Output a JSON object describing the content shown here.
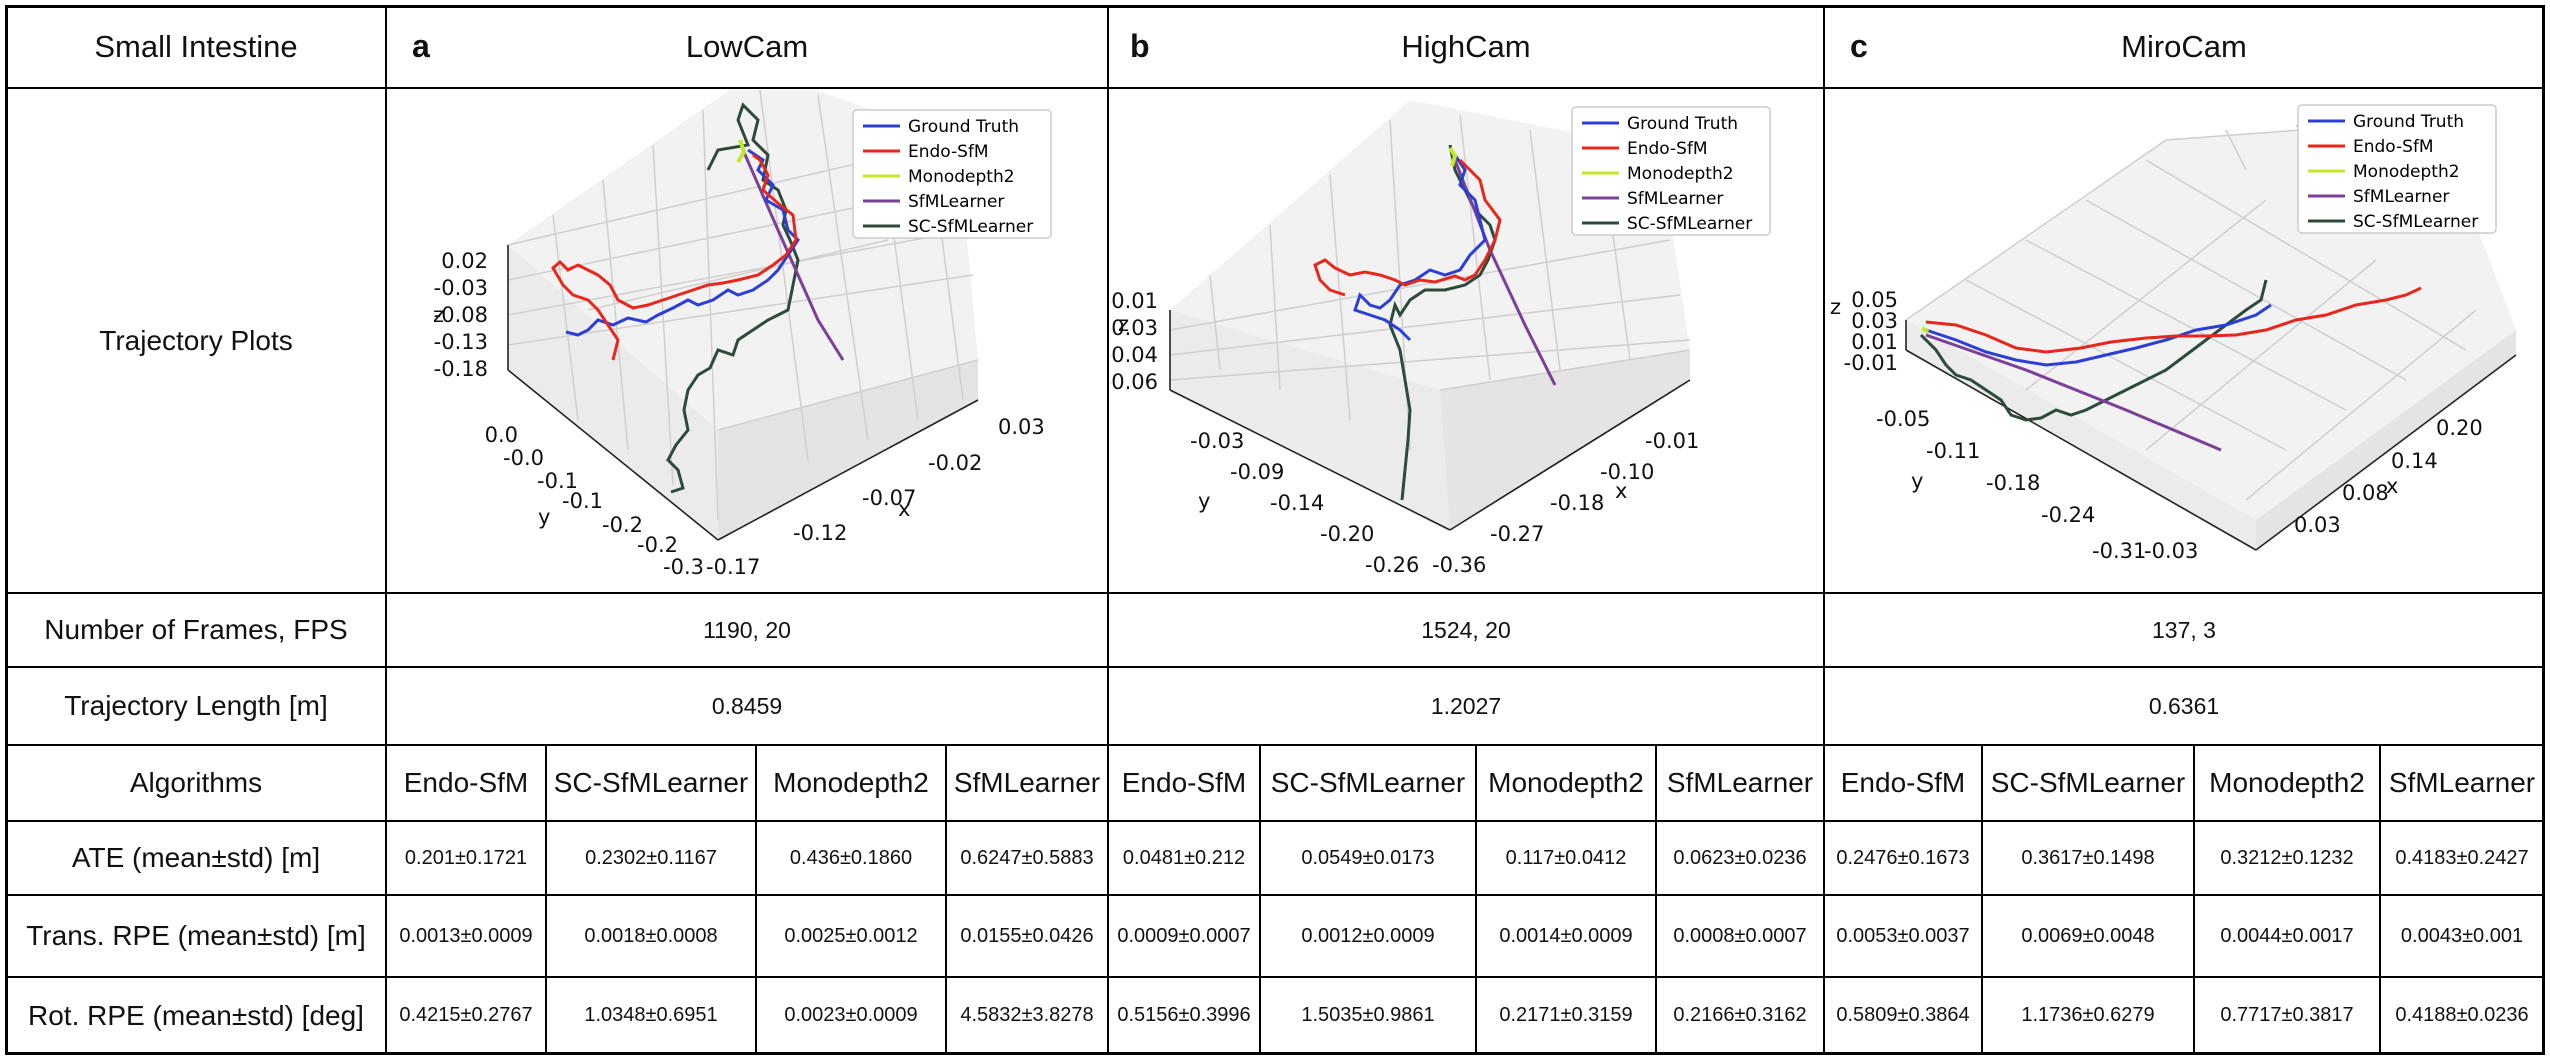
{
  "corner_title": "Small Intestine",
  "datasets": [
    {
      "letter": "a",
      "name": "LowCam",
      "frames_fps": "1190, 20",
      "traj_length": "0.8459"
    },
    {
      "letter": "b",
      "name": "HighCam",
      "frames_fps": "1524, 20",
      "traj_length": "1.2027"
    },
    {
      "letter": "c",
      "name": "MiroCam",
      "frames_fps": "137, 3",
      "traj_length": "0.6361"
    }
  ],
  "row_labels": {
    "trajectory_plots": "Trajectory Plots",
    "frames_fps": "Number of Frames, FPS",
    "traj_length": "Trajectory Length [m]",
    "algorithms": "Algorithms",
    "ate": "ATE (mean±std) [m]",
    "trans_rpe": "Trans. RPE (mean±std) [m]",
    "rot_rpe": "Rot. RPE (mean±std) [deg]"
  },
  "algorithms": [
    "Endo-SfM",
    "SC-SfMLearner",
    "Monodepth2",
    "SfMLearner",
    "Endo-SfM",
    "SC-SfMLearner",
    "Monodepth2",
    "SfMLearner",
    "Endo-SfM",
    "SC-SfMLearner",
    "Monodepth2",
    "SfMLearner"
  ],
  "ate": [
    "0.201±0.1721",
    "0.2302±0.1167",
    "0.436±0.1860",
    "0.6247±0.5883",
    "0.0481±0.212",
    "0.0549±0.0173",
    "0.117±0.0412",
    "0.0623±0.0236",
    "0.2476±0.1673",
    "0.3617±0.1498",
    "0.3212±0.1232",
    "0.4183±0.2427"
  ],
  "trans_rpe": [
    "0.0013±0.0009",
    "0.0018±0.0008",
    "0.0025±0.0012",
    "0.0155±0.0426",
    "0.0009±0.0007",
    "0.0012±0.0009",
    "0.0014±0.0009",
    "0.0008±0.0007",
    "0.0053±0.0037",
    "0.0069±0.0048",
    "0.0044±0.0017",
    "0.0043±0.001"
  ],
  "rot_rpe": [
    "0.4215±0.2767",
    "1.0348±0.6951",
    "0.0023±0.0009",
    "4.5832±3.8278",
    "0.5156±0.3996",
    "1.5035±0.9861",
    "0.2171±0.3159",
    "0.2166±0.3162",
    "0.5809±0.3864",
    "1.1736±0.6279",
    "0.7717±0.3817",
    "0.4188±0.0236"
  ],
  "legend": [
    "Ground Truth",
    "Endo-SfM",
    "Monodepth2",
    "SfMLearner",
    "SC-SfMLearner"
  ],
  "series_colors": {
    "Ground Truth": "#2b3fd6",
    "Endo-SfM": "#e8261c",
    "Monodepth2": "#c8e62a",
    "SfMLearner": "#7b3f98",
    "SC-SfMLearner": "#2d4a3c"
  },
  "plots": [
    {
      "z_axis_label": "z",
      "y_axis_label": "y",
      "x_axis_label": "x",
      "z_ticks": [
        "0.02",
        "-0.03",
        "-0.08",
        "-0.13",
        "-0.18"
      ],
      "y_ticks": [
        "0.0",
        "-0.0",
        "-0.1",
        "-0.1",
        "-0.2",
        "-0.2",
        "-0.3"
      ],
      "x_ticks": [
        "0.03",
        "-0.02",
        "-0.07",
        "-0.12",
        "-0.17"
      ]
    },
    {
      "z_axis_label": "z",
      "y_axis_label": "y",
      "x_axis_label": "x",
      "z_ticks": [
        "-0.01",
        "-0.03",
        "-0.04",
        "-0.06"
      ],
      "y_ticks": [
        "-0.03",
        "-0.09",
        "-0.14",
        "-0.20",
        "-0.26"
      ],
      "x_ticks": [
        "-0.01",
        "-0.10",
        "-0.18",
        "-0.27",
        "-0.36"
      ]
    },
    {
      "z_axis_label": "z",
      "y_axis_label": "y",
      "x_axis_label": "x",
      "z_ticks": [
        "0.05",
        "0.03",
        "0.01",
        "-0.01"
      ],
      "y_ticks": [
        "-0.05",
        "-0.11",
        "-0.18",
        "-0.24",
        "-0.31"
      ],
      "x_ticks": [
        "0.20",
        "0.14",
        "0.08",
        "0.03",
        "-0.03"
      ]
    }
  ]
}
